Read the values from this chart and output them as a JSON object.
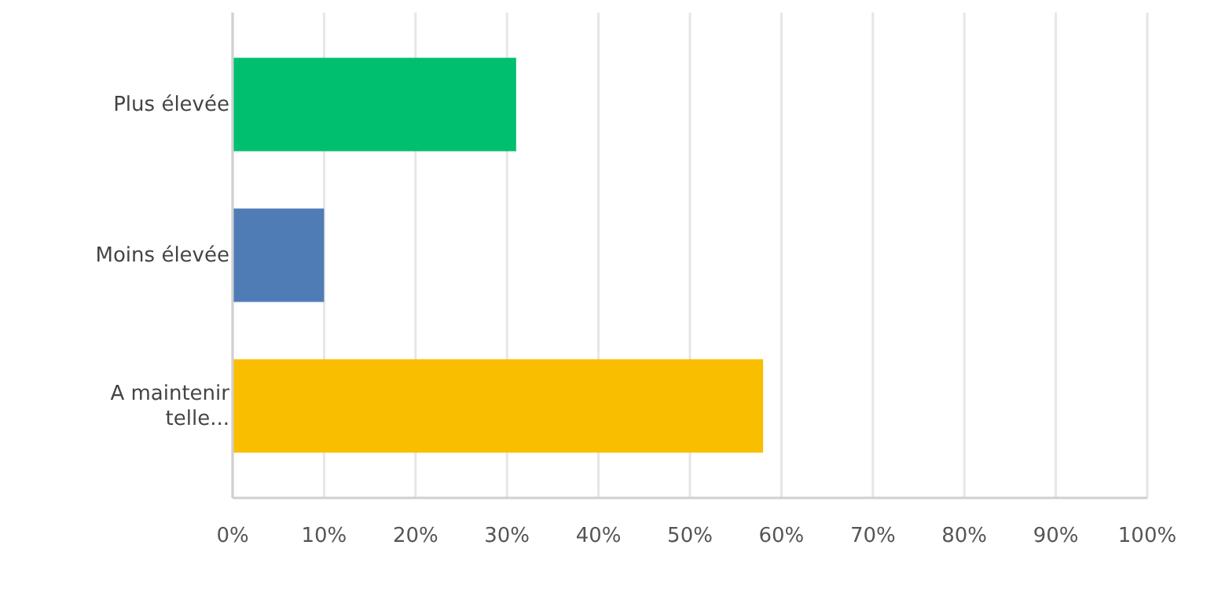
{
  "chart_data": {
    "type": "bar",
    "orientation": "horizontal",
    "categories": [
      "Plus élevée",
      "Moins élevée",
      "A maintenir telle..."
    ],
    "values": [
      31,
      10,
      58
    ],
    "colors": [
      "#00bf6f",
      "#507cb6",
      "#f9be00"
    ],
    "xlim": [
      0,
      100
    ],
    "xticks": [
      {
        "value": 0,
        "label": "0%"
      },
      {
        "value": 10,
        "label": "10%"
      },
      {
        "value": 20,
        "label": "20%"
      },
      {
        "value": 30,
        "label": "30%"
      },
      {
        "value": 40,
        "label": "40%"
      },
      {
        "value": 50,
        "label": "50%"
      },
      {
        "value": 60,
        "label": "60%"
      },
      {
        "value": 70,
        "label": "70%"
      },
      {
        "value": 80,
        "label": "80%"
      },
      {
        "value": 90,
        "label": "90%"
      },
      {
        "value": 100,
        "label": "100%"
      }
    ],
    "grid": "x"
  }
}
